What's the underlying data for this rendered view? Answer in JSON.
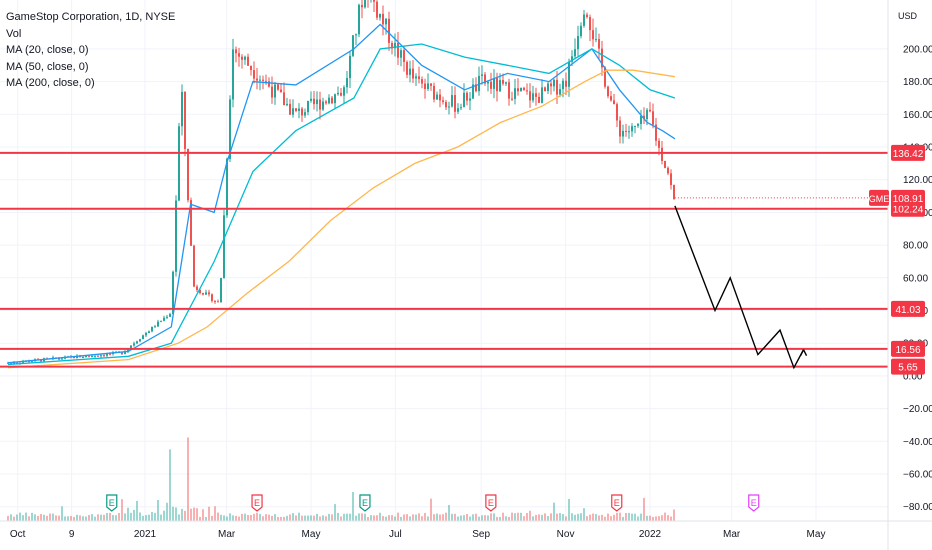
{
  "legend": {
    "title": "GameStop Corporation, 1D, NYSE",
    "vol": "Vol",
    "ma1": "MA (20, close, 0)",
    "ma2": "MA (50, close, 0)",
    "ma3": "MA (200, close, 0)"
  },
  "currency": "USD",
  "chart_data": {
    "type": "line",
    "title": "GameStop Corporation, 1D, NYSE",
    "y_axis_right": {
      "ticks": [
        "200.00",
        "180.00",
        "160.00",
        "140.00",
        "120.00",
        "100.00",
        "80.00",
        "60.00",
        "40.00",
        "20.00",
        "0.00",
        "−20.00",
        "−40.00",
        "−60.00",
        "−80.00"
      ],
      "ylim": [
        -84,
        210
      ]
    },
    "x_axis": {
      "ticks": [
        "Oct",
        "9",
        "2021",
        "Mar",
        "May",
        "Jul",
        "Sep",
        "Nov",
        "2022",
        "Mar",
        "May"
      ]
    },
    "levels": [
      {
        "label": "136.42",
        "value": 136.42
      },
      {
        "label": "102.24",
        "value": 102.24
      },
      {
        "label": "41.03",
        "value": 41.03
      },
      {
        "label": "16.56",
        "value": 16.56
      },
      {
        "label": "5.65",
        "value": 5.65
      }
    ],
    "current_price": {
      "symbol": "GME",
      "label": "108.91",
      "value": 108.91
    },
    "price_path": {
      "x": [
        "2020-09-24",
        "2020-12-15",
        "2021-01-20",
        "2021-01-27",
        "2021-02-05",
        "2021-02-24",
        "2021-03-05",
        "2021-03-20",
        "2021-04-20",
        "2021-05-25",
        "2021-06-09",
        "2021-07-01",
        "2021-07-15",
        "2021-08-15",
        "2021-09-01",
        "2021-09-20",
        "2021-10-10",
        "2021-11-01",
        "2021-11-15",
        "2021-11-25",
        "2021-12-10",
        "2021-12-20",
        "2022-01-01",
        "2022-01-07",
        "2022-01-14",
        "2022-01-19"
      ],
      "y": [
        8,
        14,
        39,
        180,
        55,
        44,
        200,
        188,
        160,
        175,
        240,
        200,
        180,
        165,
        180,
        175,
        170,
        180,
        230,
        195,
        150,
        150,
        160,
        140,
        125,
        104
      ]
    },
    "series": [
      {
        "name": "MA (20, close, 0)",
        "color": "#2196f3",
        "x": [
          "2020-09-24",
          "2020-12-20",
          "2021-01-20",
          "2021-02-03",
          "2021-02-20",
          "2021-03-01",
          "2021-03-20",
          "2021-04-20",
          "2021-06-01",
          "2021-06-20",
          "2021-07-20",
          "2021-08-20",
          "2021-09-20",
          "2021-10-20",
          "2021-11-20",
          "2021-12-10",
          "2021-12-30",
          "2022-01-10",
          "2022-01-19"
        ],
        "y": [
          8,
          15,
          30,
          105,
          100,
          130,
          180,
          178,
          200,
          215,
          190,
          175,
          185,
          180,
          200,
          175,
          155,
          150,
          145
        ]
      },
      {
        "name": "MA (50, close, 0)",
        "color": "#00bcd4",
        "x": [
          "2020-09-24",
          "2020-12-20",
          "2021-01-20",
          "2021-02-20",
          "2021-03-20",
          "2021-04-20",
          "2021-06-01",
          "2021-06-20",
          "2021-07-20",
          "2021-08-20",
          "2021-09-20",
          "2021-10-20",
          "2021-11-20",
          "2021-12-10",
          "2022-01-01",
          "2022-01-19"
        ],
        "y": [
          7,
          12,
          20,
          70,
          125,
          150,
          170,
          200,
          203,
          195,
          190,
          185,
          200,
          190,
          175,
          170
        ]
      },
      {
        "name": "MA (200, close, 0)",
        "color": "#ffb74d",
        "x": [
          "2020-09-24",
          "2020-12-20",
          "2021-01-25",
          "2021-02-15",
          "2021-03-15",
          "2021-04-15",
          "2021-05-15",
          "2021-06-15",
          "2021-07-15",
          "2021-08-15",
          "2021-09-15",
          "2021-10-15",
          "2021-11-15",
          "2021-12-01",
          "2021-12-20",
          "2022-01-19"
        ],
        "y": [
          5,
          10,
          20,
          30,
          50,
          70,
          95,
          115,
          130,
          140,
          155,
          165,
          180,
          187,
          187,
          183
        ]
      }
    ],
    "projection": {
      "color": "#000000",
      "x": [
        "2022-01-19",
        "2022-02-17",
        "2022-02-28",
        "2022-03-20",
        "2022-04-05",
        "2022-04-15",
        "2022-04-22"
      ],
      "y": [
        104,
        40,
        60,
        13,
        28,
        5,
        16
      ]
    },
    "earnings_markers": [
      "E",
      "E",
      "E",
      "E",
      "E",
      "E"
    ]
  }
}
